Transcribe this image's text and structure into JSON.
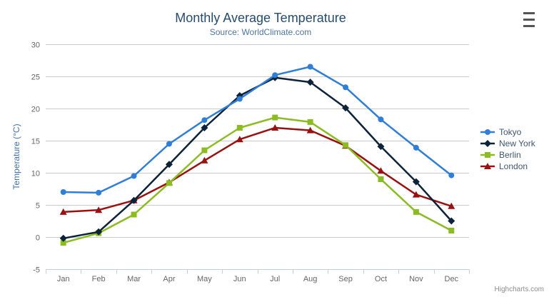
{
  "chart_data": {
    "type": "line",
    "title": "Monthly Average Temperature",
    "subtitle": "Source: WorldClimate.com",
    "xlabel": "",
    "ylabel": "Temperature (°C)",
    "categories": [
      "Jan",
      "Feb",
      "Mar",
      "Apr",
      "May",
      "Jun",
      "Jul",
      "Aug",
      "Sep",
      "Oct",
      "Nov",
      "Dec"
    ],
    "yticks": [
      -5,
      0,
      5,
      10,
      15,
      20,
      25,
      30
    ],
    "ylim": [
      -5,
      30
    ],
    "grid": true,
    "legend_position": "right-middle",
    "series": [
      {
        "name": "Tokyo",
        "color": "#2f7ed8",
        "marker": "circle",
        "values": [
          7.0,
          6.9,
          9.5,
          14.5,
          18.2,
          21.5,
          25.2,
          26.5,
          23.3,
          18.3,
          13.9,
          9.6
        ]
      },
      {
        "name": "New York",
        "color": "#0d233a",
        "marker": "diamond",
        "values": [
          -0.2,
          0.8,
          5.7,
          11.3,
          17.0,
          22.0,
          24.8,
          24.1,
          20.1,
          14.1,
          8.6,
          2.5
        ]
      },
      {
        "name": "Berlin",
        "color": "#8bbc21",
        "marker": "square",
        "values": [
          -0.9,
          0.6,
          3.5,
          8.4,
          13.5,
          17.0,
          18.6,
          17.9,
          14.3,
          9.0,
          3.9,
          1.0
        ]
      },
      {
        "name": "London",
        "color": "#991111",
        "marker": "triangle",
        "values": [
          3.9,
          4.2,
          5.7,
          8.5,
          11.9,
          15.2,
          17.0,
          16.6,
          14.2,
          10.3,
          6.6,
          4.8
        ]
      }
    ],
    "axis_colors": {
      "grid": "#cccccc",
      "line": "#c0d0e0",
      "tick_text": "#666666",
      "axis_title": "#4572a7"
    }
  },
  "icons": {
    "export_menu": "hamburger-icon"
  },
  "credits": {
    "label": "Highcharts.com"
  }
}
